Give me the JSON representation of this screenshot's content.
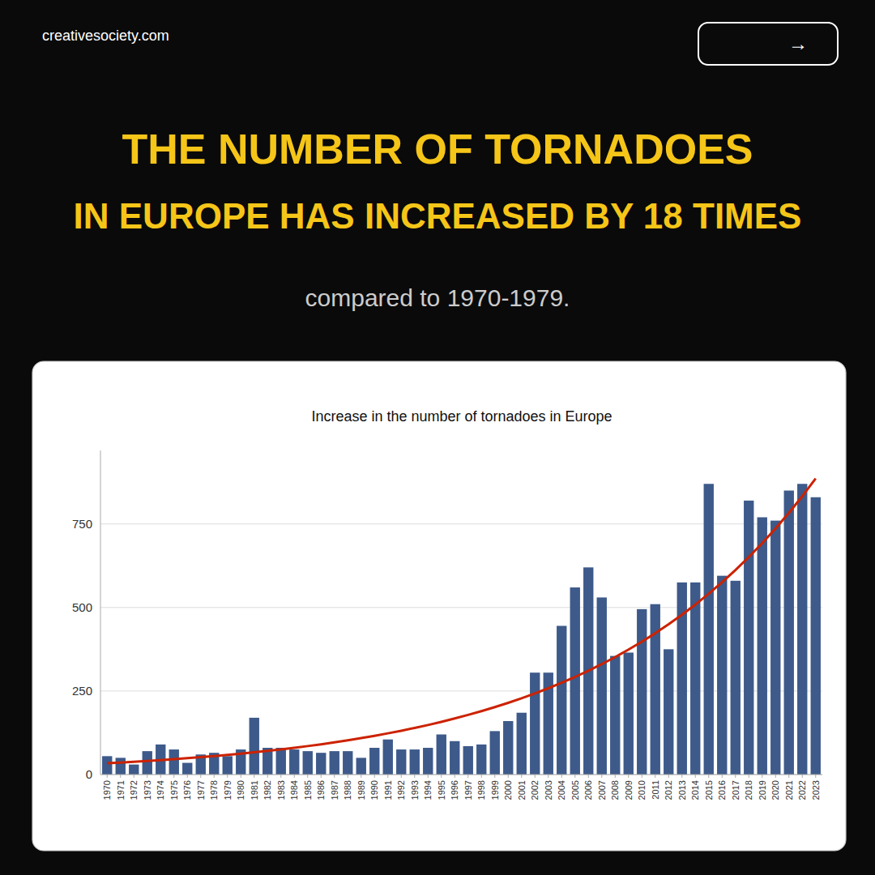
{
  "website": "creativesociety.com",
  "button_label": "→",
  "title_lines": [
    "THE NUMBER OF TORNADOES",
    "IN EUROPE HAS INCREASED BY 18 TIMES"
  ],
  "subtitle": "compared to 1970-1979.",
  "chart_data": {
    "type": "bar",
    "title": "Increase in the number of tornadoes in Europe",
    "categories": [
      1970,
      1971,
      1972,
      1973,
      1974,
      1975,
      1976,
      1977,
      1978,
      1979,
      1980,
      1981,
      1982,
      1983,
      1984,
      1985,
      1986,
      1987,
      1988,
      1989,
      1990,
      1991,
      1992,
      1993,
      1994,
      1995,
      1996,
      1997,
      1998,
      1999,
      2000,
      2001,
      2002,
      2003,
      2004,
      2005,
      2006,
      2007,
      2008,
      2009,
      2010,
      2011,
      2012,
      2013,
      2014,
      2015,
      2016,
      2017,
      2018,
      2019,
      2020,
      2021,
      2022,
      2023
    ],
    "series": [
      {
        "type": "bar",
        "color": "#3d5a8a",
        "values": [
          55,
          50,
          30,
          70,
          90,
          75,
          35,
          60,
          65,
          55,
          75,
          170,
          80,
          80,
          75,
          70,
          65,
          70,
          70,
          50,
          80,
          105,
          75,
          75,
          80,
          120,
          100,
          85,
          90,
          130,
          160,
          185,
          305,
          305,
          445,
          560,
          620,
          530,
          355,
          365,
          495,
          510,
          375,
          575,
          575,
          870,
          595,
          580,
          820,
          770,
          760,
          850,
          870,
          830
        ]
      },
      {
        "type": "line",
        "color": "#cc2200",
        "values": [
          33.8,
          35.9,
          38.2,
          40.7,
          43.2,
          46.0,
          48.9,
          52.0,
          55.3,
          58.9,
          62.6,
          66.6,
          70.8,
          75.3,
          80.1,
          85.2,
          90.6,
          96.4,
          102.5,
          109.0,
          115.9,
          123.3,
          131.1,
          139.5,
          148.3,
          157.8,
          167.8,
          178.5,
          189.8,
          201.9,
          214.7,
          228.4,
          242.9,
          258.3,
          274.7,
          292.2,
          310.8,
          330.5,
          351.6,
          373.9,
          397.7,
          422.9,
          449.8,
          478.4,
          508.8,
          541.2,
          575.6,
          612.2,
          651.1,
          692.5,
          736.5,
          783.3,
          833.1,
          886.1
        ]
      }
    ],
    "ylim": [
      0,
      970
    ],
    "yticks": [
      0,
      250,
      500,
      750
    ],
    "grid": true
  }
}
